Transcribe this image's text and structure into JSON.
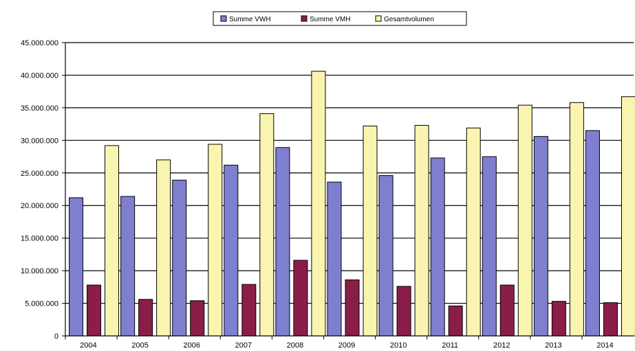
{
  "chart_data": {
    "type": "bar",
    "categories": [
      "2004",
      "2005",
      "2006",
      "2007",
      "2008",
      "2009",
      "2010",
      "2011",
      "2012",
      "2013",
      "2014"
    ],
    "series": [
      {
        "name": "Summe VWH",
        "color": "#7f7fcf",
        "values": [
          21200000,
          21400000,
          23900000,
          26200000,
          28900000,
          23600000,
          24600000,
          27300000,
          27500000,
          30600000,
          31500000
        ]
      },
      {
        "name": "Summe VMH",
        "color": "#8b1e48",
        "values": [
          7800000,
          5600000,
          5400000,
          7900000,
          11600000,
          8600000,
          7600000,
          4600000,
          7800000,
          5300000,
          5100000
        ]
      },
      {
        "name": "Gesamtvolumen",
        "color": "#f9f4b0",
        "values": [
          29200000,
          27000000,
          29400000,
          34100000,
          40600000,
          32200000,
          32300000,
          31900000,
          35400000,
          35800000,
          36700000
        ]
      }
    ],
    "ylim": [
      0,
      45000000
    ],
    "yticks": [
      0,
      5000000,
      10000000,
      15000000,
      20000000,
      25000000,
      30000000,
      35000000,
      40000000,
      45000000
    ],
    "ytick_labels": [
      "0",
      "5.000.000",
      "10.000.000",
      "15.000.000",
      "20.000.000",
      "25.000.000",
      "30.000.000",
      "35.000.000",
      "40.000.000",
      "45.000.000"
    ],
    "grid": true,
    "legend_position": "top-center",
    "plot_background": "#ffffff",
    "grid_color": "#000000"
  }
}
